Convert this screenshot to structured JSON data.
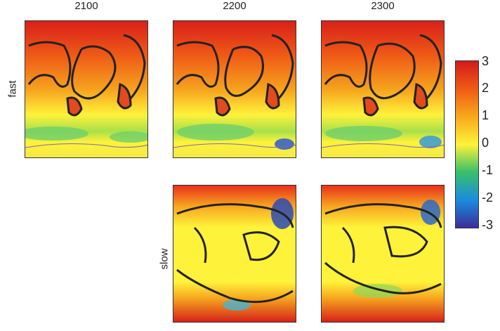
{
  "chart_data": {
    "type": "heatmap",
    "columns": [
      "2100",
      "2200",
      "2300"
    ],
    "rows": [
      "fast",
      "slow"
    ],
    "panels": [
      {
        "row": "fast",
        "column": "2100"
      },
      {
        "row": "fast",
        "column": "2200"
      },
      {
        "row": "fast",
        "column": "2300"
      },
      {
        "row": "slow",
        "column": "2200"
      },
      {
        "row": "slow",
        "column": "2300"
      }
    ],
    "colorbar": {
      "min": -3,
      "max": 3,
      "ticks": [
        "3",
        "2",
        "1",
        "0",
        "-1",
        "-2",
        "-3"
      ],
      "colors": [
        "#d41a1a",
        "#f05a14",
        "#f8a81c",
        "#fff23a",
        "#38c06a",
        "#1a8ce0",
        "#3a2e9a"
      ]
    }
  }
}
